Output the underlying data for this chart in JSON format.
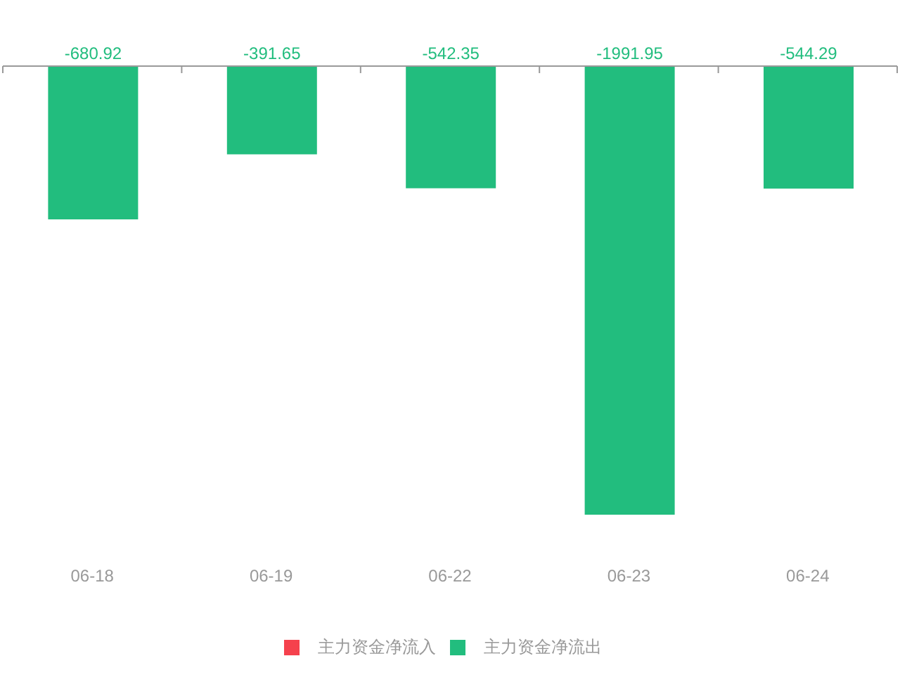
{
  "chart_data": {
    "type": "bar",
    "categories": [
      "06-18",
      "06-19",
      "06-22",
      "06-23",
      "06-24"
    ],
    "series": [
      {
        "name": "主力资金净流入",
        "color": "#f5414d",
        "values": [
          null,
          null,
          null,
          null,
          null
        ]
      },
      {
        "name": "主力资金净流出",
        "color": "#22bd7e",
        "values": [
          -680.92,
          -391.65,
          -542.35,
          -1991.95,
          -544.29
        ]
      }
    ],
    "data_labels": true,
    "legend": "bottom",
    "tick_labels": "x"
  }
}
